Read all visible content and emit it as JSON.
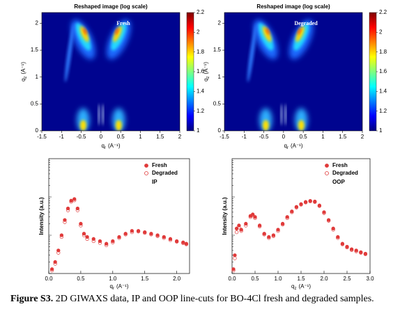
{
  "chart_data": [
    {
      "type": "heatmap",
      "title": "Reshaped image (log scale)",
      "annotation": "Fresh",
      "xlabel": {
        "symbol": "q",
        "sub": "r",
        "unit": "(A⁻¹)"
      },
      "ylabel": {
        "symbol": "q",
        "sub": "z",
        "unit": "(A⁻¹)"
      },
      "xlim": [
        -1.5,
        2
      ],
      "xticks": [
        -1.5,
        -1,
        -0.5,
        0,
        0.5,
        1,
        1.5,
        2
      ],
      "ylim": [
        0,
        2.2
      ],
      "yticks": [
        0,
        0.5,
        1,
        1.5,
        2
      ],
      "zlim": [
        1,
        2.2
      ],
      "zticks": [
        1,
        1.2,
        1.4,
        1.6,
        1.8,
        2,
        2.2
      ],
      "colormap": "jet"
    },
    {
      "type": "heatmap",
      "title": "Reshaped image (log scale)",
      "annotation": "Degraded",
      "xlabel": {
        "symbol": "q",
        "sub": "r",
        "unit": "(A⁻¹)"
      },
      "ylabel": {
        "symbol": "q",
        "sub": "z",
        "unit": "(A⁻¹)"
      },
      "xlim": [
        -1.5,
        2
      ],
      "xticks": [
        -1.5,
        -1,
        -0.5,
        0,
        0.5,
        1,
        1.5,
        2
      ],
      "ylim": [
        0,
        2.2
      ],
      "yticks": [
        0,
        0.5,
        1,
        1.5,
        2
      ],
      "zlim": [
        1,
        2.2
      ],
      "zticks": [
        1,
        1.2,
        1.4,
        1.6,
        1.8,
        2,
        2.2
      ],
      "colormap": "jet"
    },
    {
      "type": "scatter",
      "annotation": "IP",
      "log_y": true,
      "xlabel": {
        "symbol": "q",
        "sub": "r",
        "unit": "(A⁻¹)"
      },
      "ylabel": "Intensity (a.u.)",
      "xlim": [
        0,
        2.2
      ],
      "xticks": [
        {
          "value": 0,
          "label": "0.0"
        },
        0.5,
        {
          "value": 1,
          "label": "1.0"
        },
        1.5,
        {
          "value": 2,
          "label": "2.0"
        }
      ],
      "ylim": [
        1,
        1000
      ],
      "x": [
        0.05,
        0.1,
        0.15,
        0.2,
        0.25,
        0.3,
        0.35,
        0.4,
        0.45,
        0.5,
        0.55,
        0.6,
        0.7,
        0.8,
        0.9,
        1.0,
        1.1,
        1.2,
        1.3,
        1.4,
        1.5,
        1.6,
        1.7,
        1.8,
        1.9,
        2.0,
        2.1,
        2.15
      ],
      "series": [
        {
          "name": "Fresh",
          "color": "#e03a3a",
          "marker": "filled",
          "values": [
            1.3,
            2,
            4,
            10,
            25,
            50,
            80,
            88,
            50,
            20,
            11,
            9,
            8,
            7,
            6,
            7,
            9,
            11,
            13,
            13,
            12,
            11,
            10,
            9,
            8,
            7,
            6.5,
            6
          ]
        },
        {
          "name": "Degraded",
          "color": "#e03a3a",
          "marker": "open",
          "values": [
            1.2,
            1.8,
            3.5,
            9,
            22,
            45,
            75,
            82,
            45,
            18,
            10,
            8,
            7,
            6.3,
            5.5,
            6.5,
            8.5,
            10.5,
            12,
            12.5,
            11.5,
            10.5,
            9.5,
            8.5,
            7.5,
            6.8,
            6.2,
            5.8
          ]
        }
      ]
    },
    {
      "type": "scatter",
      "annotation": "OOP",
      "log_y": true,
      "xlabel": {
        "symbol": "q",
        "sub": "z",
        "unit": "(A⁻¹)"
      },
      "ylabel": "Intensity (a.u.)",
      "xlim": [
        0,
        3
      ],
      "xticks": [
        {
          "value": 0,
          "label": "0.0"
        },
        0.5,
        {
          "value": 1,
          "label": "1.0"
        },
        1.5,
        {
          "value": 2,
          "label": "2.0"
        },
        2.5,
        {
          "value": 3,
          "label": "3.0"
        }
      ],
      "ylim": [
        1,
        1000
      ],
      "x": [
        0.03,
        0.06,
        0.1,
        0.15,
        0.2,
        0.3,
        0.4,
        0.45,
        0.5,
        0.6,
        0.7,
        0.8,
        0.9,
        1.0,
        1.1,
        1.2,
        1.3,
        1.4,
        1.5,
        1.6,
        1.7,
        1.8,
        1.9,
        2.0,
        2.1,
        2.2,
        2.3,
        2.4,
        2.5,
        2.6,
        2.7,
        2.8,
        2.9
      ],
      "series": [
        {
          "name": "Fresh",
          "color": "#e03a3a",
          "marker": "filled",
          "values": [
            1.3,
            3,
            15,
            18,
            14,
            20,
            32,
            35,
            30,
            18,
            11,
            9,
            10,
            14,
            20,
            30,
            42,
            55,
            65,
            74,
            79,
            76,
            60,
            40,
            25,
            15,
            9,
            6,
            5,
            4.3,
            4,
            3.6,
            3.3
          ]
        },
        {
          "name": "Degraded",
          "color": "#e03a3a",
          "marker": "open",
          "values": [
            1.2,
            2.5,
            12,
            16,
            13,
            18,
            30,
            33,
            28,
            17,
            10.5,
            8.5,
            9.5,
            13,
            19,
            28,
            40,
            53,
            63,
            72,
            77,
            74,
            58,
            38,
            24,
            14,
            8.5,
            5.8,
            4.8,
            4.1,
            3.8,
            3.5,
            3.2
          ]
        }
      ]
    }
  ],
  "caption": {
    "label": "Figure S3.",
    "text": "2D GIWAXS data, IP and OOP line-cuts for BO-4Cl fresh and degraded samples."
  }
}
